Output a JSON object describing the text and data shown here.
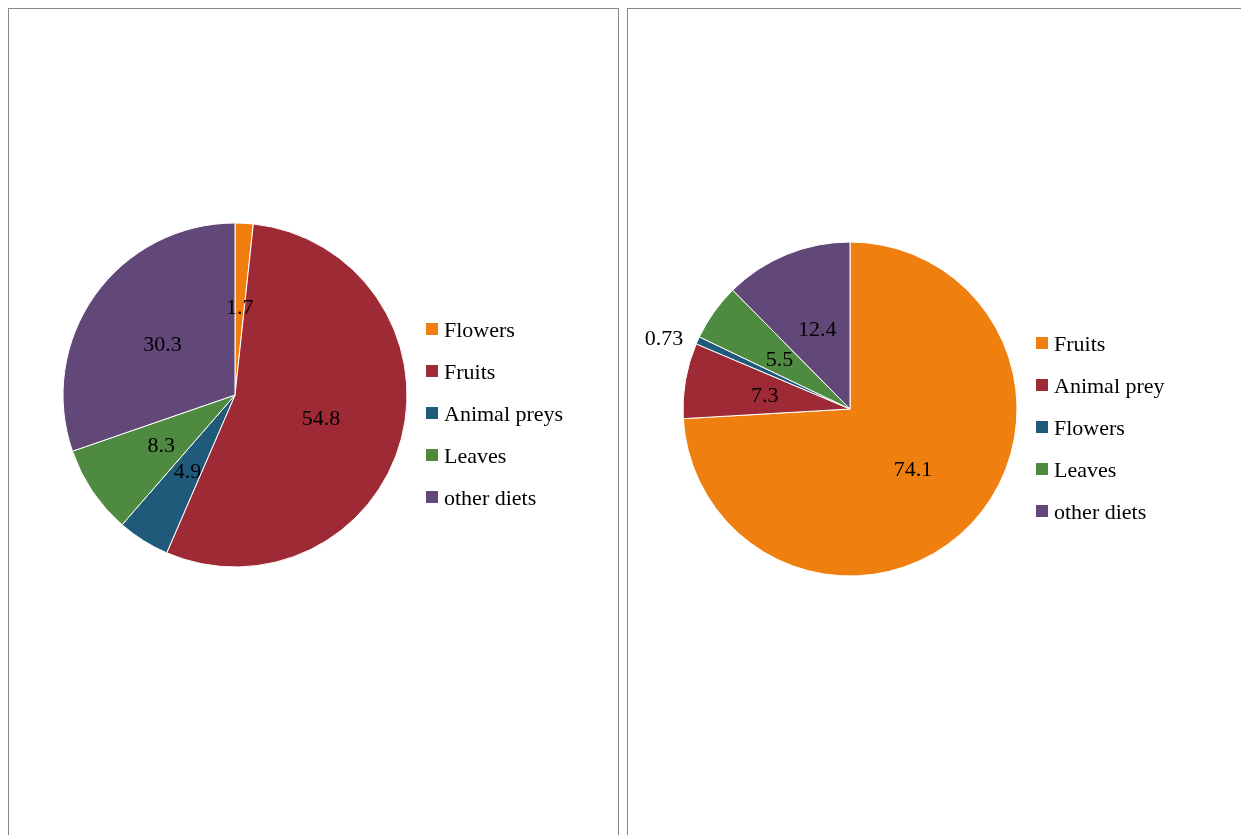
{
  "chart_data": [
    {
      "type": "pie",
      "categories": [
        "Flowers",
        "Fruits",
        "Animal preys",
        "Leaves",
        "other diets"
      ],
      "values": [
        1.7,
        54.8,
        4.9,
        8.3,
        30.3
      ],
      "colors": [
        "#ef8010",
        "#9e2a36",
        "#1f5a7b",
        "#4e8a40",
        "#624878"
      ],
      "data_labels": true,
      "legend": "right"
    },
    {
      "type": "pie",
      "categories": [
        "Fruits",
        "Animal prey",
        "Flowers",
        "Leaves",
        "other diets"
      ],
      "values": [
        74.1,
        7.3,
        0.73,
        5.5,
        12.4
      ],
      "colors": [
        "#ef8010",
        "#9e2a36",
        "#1f5a7b",
        "#4e8a40",
        "#624878"
      ],
      "data_labels": true,
      "legend": "right"
    }
  ]
}
